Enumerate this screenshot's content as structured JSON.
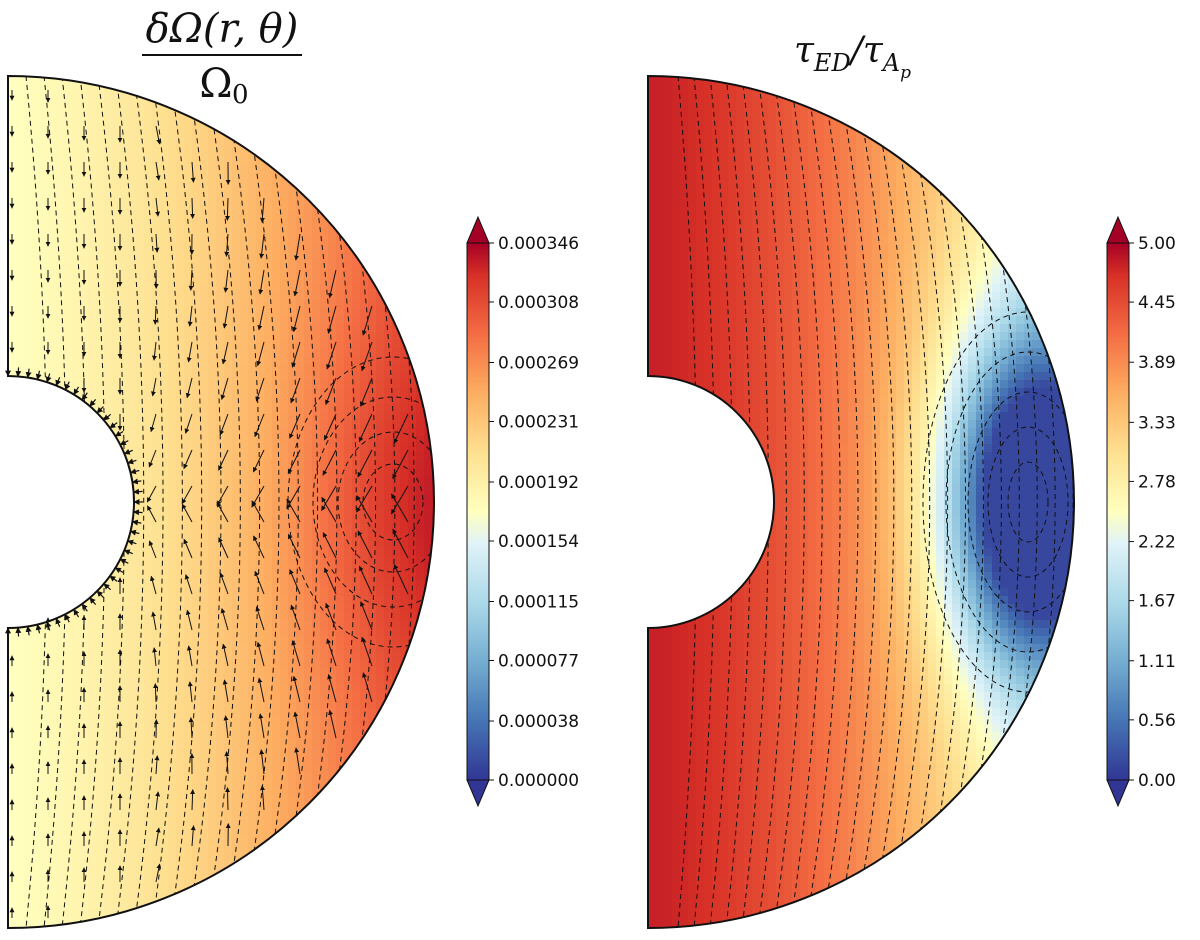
{
  "chart_data": [
    {
      "type": "heatmap",
      "title": {
        "numerator": "δΩ(r, θ)",
        "denominator": "Ω0",
        "denominator_base": "Ω",
        "denominator_sub": "0"
      },
      "colorbar": {
        "range": [
          0.0,
          0.000346
        ],
        "ticks": [
          "0.000000",
          "0.000038",
          "0.000077",
          "0.000115",
          "0.000154",
          "0.000192",
          "0.000231",
          "0.000269",
          "0.000308",
          "0.000346"
        ],
        "colormap": "RdYlBu_r",
        "extend": "both"
      },
      "domain": {
        "type": "half-annulus",
        "inner_radius_fraction": 0.29
      },
      "peak": {
        "location": "equator, near outer surface",
        "value": 0.000346
      },
      "overlays": [
        "dashed contour lines",
        "velocity field arrows"
      ]
    },
    {
      "type": "heatmap",
      "title": {
        "base": "τ",
        "sub": "ED",
        "slash": "/",
        "base2": "τ",
        "sub2": "A",
        "subsub2": "p"
      },
      "colorbar": {
        "range": [
          0.0,
          5.0
        ],
        "ticks": [
          "0.00",
          "0.56",
          "1.11",
          "1.67",
          "2.22",
          "2.78",
          "3.33",
          "3.89",
          "4.45",
          "5.00"
        ],
        "colormap": "RdYlBu_r",
        "extend": "both"
      },
      "domain": {
        "type": "half-annulus",
        "inner_radius_fraction": 0.29
      },
      "minimum": {
        "location": "equator, near outer surface",
        "value": 0.0
      },
      "overlays": [
        "dashed contour lines"
      ]
    }
  ]
}
